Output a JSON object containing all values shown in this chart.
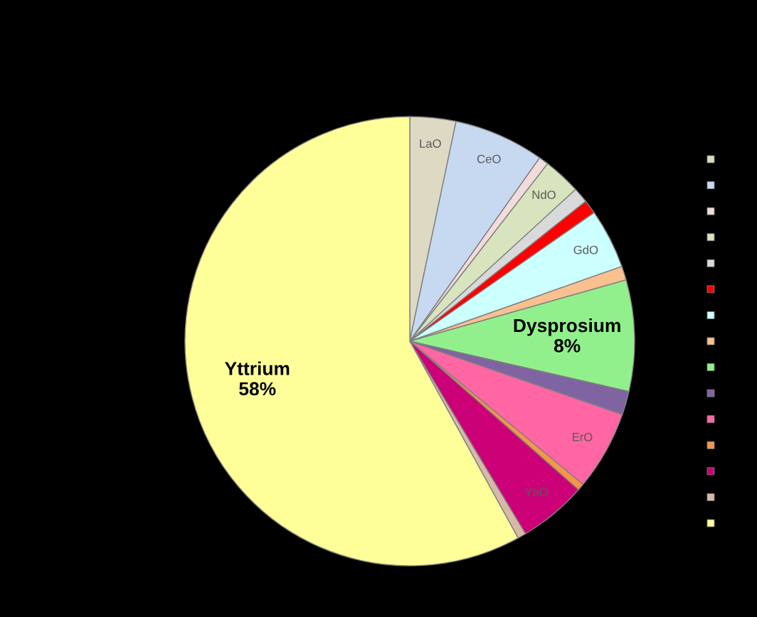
{
  "chart_data": {
    "type": "pie",
    "categories": [
      "LaO",
      "CeO",
      null,
      "NdO",
      null,
      null,
      "GdO",
      null,
      "Dysprosium",
      null,
      "ErO",
      null,
      "YbO",
      null,
      "Yttrium"
    ],
    "values": [
      3.3,
      6.5,
      0.7,
      2.7,
      1.1,
      1.0,
      4.3,
      1.0,
      8,
      1.7,
      5.7,
      0.5,
      4.9,
      0.6,
      58
    ],
    "value_labels": [
      null,
      null,
      null,
      null,
      null,
      null,
      null,
      null,
      "8%",
      null,
      null,
      null,
      null,
      null,
      "58%"
    ],
    "colors": [
      "#ddd9c3",
      "#c6d9f1",
      "#f2dcdb",
      "#d7e4bd",
      "#d9d9d9",
      "#ff0000",
      "#ccffff",
      "#fac090",
      "#92f08c",
      "#8064a2",
      "#ff66a3",
      "#f79646",
      "#cc0077",
      "#d8b9a8",
      "#ffff99"
    ]
  }
}
